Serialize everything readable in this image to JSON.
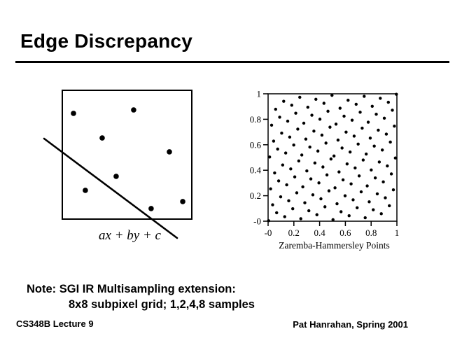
{
  "slide": {
    "title": "Edge Discrepancy",
    "note_line1": "Note: SGI IR Multisampling extension:",
    "note_line2": "8x8 subpixel grid; 1,2,4,8 samples",
    "footer_left": "CS348B Lecture 9",
    "footer_right": "Pat Hanrahan, Spring 2001"
  },
  "edge_figure": {
    "label": "ax + by + c",
    "samples": [
      [
        0.0865,
        0.1793
      ],
      [
        0.551,
        0.1522
      ],
      [
        0.308,
        0.37
      ],
      [
        0.827,
        0.478
      ],
      [
        0.416,
        0.668
      ],
      [
        0.178,
        0.777
      ],
      [
        0.686,
        0.918
      ],
      [
        0.93,
        0.864
      ]
    ],
    "edge_line": {
      "x1": -0.1405,
      "y1": 0.375,
      "x2": 0.8865,
      "y2": 1.1467
    }
  },
  "chart_data": {
    "type": "scatter",
    "title": "Zaremba-Hammersley Points",
    "xlabel": "",
    "ylabel": "",
    "xlim": [
      0,
      1
    ],
    "ylim": [
      0,
      1
    ],
    "grid": false,
    "x_tick_labels": [
      "-0",
      "0.2",
      "0.4",
      "0.6",
      "0.8",
      "1"
    ],
    "y_tick_labels": [
      "1",
      "0.8",
      "0.6",
      "0.4",
      "0.2",
      "-0"
    ],
    "points": {
      "n": 128,
      "x_rule": "x_i = (i + 0.5) / 128 for i = 0..127",
      "y_rule": "y_i = (y_bit_reversed_order[i] + 0.5) / 128",
      "y_bit_reversed_order": [
        0,
        64,
        32,
        96,
        16,
        80,
        48,
        112,
        8,
        72,
        40,
        104,
        24,
        88,
        56,
        120,
        4,
        68,
        36,
        100,
        20,
        84,
        52,
        116,
        12,
        76,
        44,
        108,
        28,
        92,
        60,
        124,
        2,
        66,
        34,
        98,
        18,
        82,
        50,
        114,
        10,
        74,
        42,
        106,
        26,
        90,
        58,
        122,
        6,
        70,
        38,
        102,
        22,
        86,
        54,
        118,
        14,
        78,
        46,
        110,
        30,
        94,
        62,
        126,
        1,
        65,
        33,
        97,
        17,
        81,
        49,
        113,
        9,
        73,
        41,
        105,
        25,
        89,
        57,
        121,
        5,
        69,
        37,
        101,
        21,
        85,
        53,
        117,
        13,
        77,
        45,
        109,
        29,
        93,
        61,
        125,
        3,
        67,
        35,
        99,
        19,
        83,
        51,
        115,
        11,
        75,
        43,
        107,
        27,
        91,
        59,
        123,
        7,
        71,
        39,
        103,
        23,
        87,
        55,
        119,
        15,
        79,
        47,
        111,
        31,
        95,
        63,
        127
      ]
    }
  }
}
